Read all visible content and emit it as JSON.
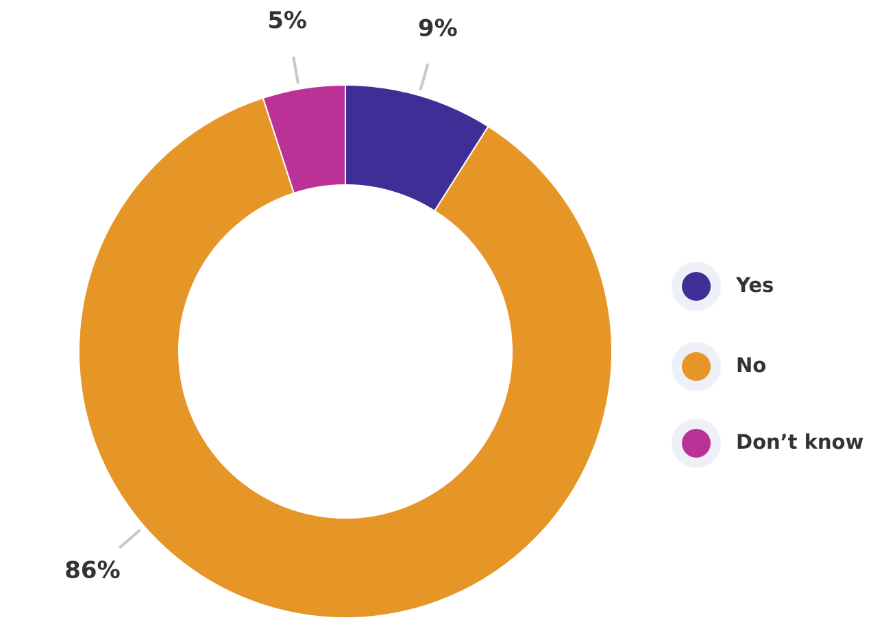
{
  "chart_data": {
    "type": "donut",
    "categories": [
      "Yes",
      "No",
      "Don’t know"
    ],
    "values": [
      9,
      86,
      5
    ],
    "value_labels": [
      "9%",
      "86%",
      "5%"
    ],
    "colors": [
      "#3d2f96",
      "#e69626",
      "#bb3296"
    ],
    "legend": "right"
  }
}
